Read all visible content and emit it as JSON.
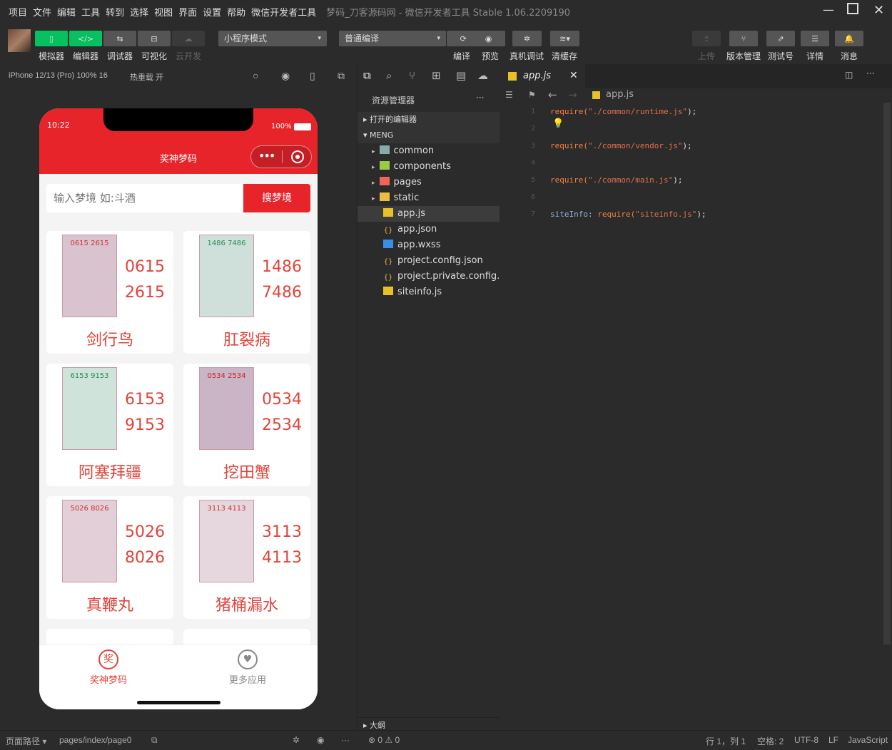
{
  "menu": [
    "项目",
    "文件",
    "编辑",
    "工具",
    "转到",
    "选择",
    "视图",
    "界面",
    "设置",
    "帮助",
    "微信开发者工具"
  ],
  "window_title": "梦码_刀客源码网 - 微信开发者工具 Stable 1.06.2209190",
  "toolbar": {
    "left": [
      "模拟器",
      "编辑器",
      "调试器",
      "可视化",
      "云开发"
    ],
    "mode": "小程序模式",
    "compile": "普通编译",
    "mid": [
      "编译",
      "预览",
      "真机调试",
      "清缓存"
    ],
    "right": [
      "上传",
      "版本管理",
      "测试号",
      "详情",
      "消息"
    ]
  },
  "simbar": {
    "device": "iPhone 12/13 (Pro) 100% 16",
    "hotreload": "热重载 开"
  },
  "phone": {
    "time": "10:22",
    "battery": "100%",
    "title": "奖神梦码",
    "search_placeholder": "输入梦境 如:斗酒",
    "search_button": "搜梦境",
    "cards": [
      {
        "name": "剑行鸟",
        "n1": "0615",
        "n2": "2615",
        "tint": "#d9c3cf",
        "ink": "#c33"
      },
      {
        "name": "肛裂病",
        "n1": "1486",
        "n2": "7486",
        "tint": "#cfe0da",
        "ink": "#2a8a55"
      },
      {
        "name": "阿塞拜疆",
        "n1": "6153",
        "n2": "9153",
        "tint": "#cfe3da",
        "ink": "#2a8a55"
      },
      {
        "name": "挖田蟹",
        "n1": "0534",
        "n2": "2534",
        "tint": "#c9b5c6",
        "ink": "#c22"
      },
      {
        "name": "真鞭丸",
        "n1": "5026",
        "n2": "8026",
        "tint": "#e2cfd8",
        "ink": "#c33"
      },
      {
        "name": "猪桶漏水",
        "n1": "3113",
        "n2": "4113",
        "tint": "#e6d6de",
        "ink": "#c33"
      }
    ],
    "tabs": [
      {
        "label": "奖神梦码",
        "glyph": "奖"
      },
      {
        "label": "更多应用",
        "glyph": "♥"
      }
    ]
  },
  "explorer": {
    "title": "资源管理器",
    "open_editors": "打开的编辑器",
    "root": "MENG",
    "items": [
      {
        "name": "common",
        "type": "folder",
        "color": "#8aa"
      },
      {
        "name": "components",
        "type": "folder",
        "color": "#9c4"
      },
      {
        "name": "pages",
        "type": "folder",
        "color": "#e65"
      },
      {
        "name": "static",
        "type": "folder",
        "color": "#eb4"
      },
      {
        "name": "app.js",
        "type": "js",
        "color": "#e8c12a"
      },
      {
        "name": "app.json",
        "type": "json",
        "color": "#e8b84a"
      },
      {
        "name": "app.wxss",
        "type": "css",
        "color": "#3a8ee6"
      },
      {
        "name": "project.config.json",
        "type": "json",
        "color": "#e8b84a"
      },
      {
        "name": "project.private.config.js...",
        "type": "json",
        "color": "#e8b84a"
      },
      {
        "name": "siteinfo.js",
        "type": "js",
        "color": "#e8c12a"
      }
    ],
    "outline": "大纲"
  },
  "editor": {
    "tab": "app.js",
    "breadcrumb": "app.js",
    "lines": [
      {
        "n": "1",
        "a": "require(",
        "b": "\"./common/runtime.js\"",
        "c": ");"
      },
      {
        "n": "2",
        "a": "",
        "b": "",
        "c": ""
      },
      {
        "n": "3",
        "a": "require(",
        "b": "\"./common/vendor.js\"",
        "c": ");"
      },
      {
        "n": "4",
        "a": "",
        "b": "",
        "c": ""
      },
      {
        "n": "5",
        "a": "require(",
        "b": "\"./common/main.js\"",
        "c": ");"
      },
      {
        "n": "6",
        "a": "",
        "b": "",
        "c": ""
      },
      {
        "n": "7",
        "pre": "siteInfo: ",
        "a": "require(",
        "b": "\"siteinfo.js\"",
        "c": ");"
      }
    ]
  },
  "status": {
    "page_path": "页面路径",
    "path": "pages/index/page0",
    "errors": "0",
    "warnings": "0",
    "position": "行 1，列 1",
    "spaces": "空格: 2",
    "encoding": "UTF-8",
    "eol": "LF",
    "language": "JavaScript"
  }
}
